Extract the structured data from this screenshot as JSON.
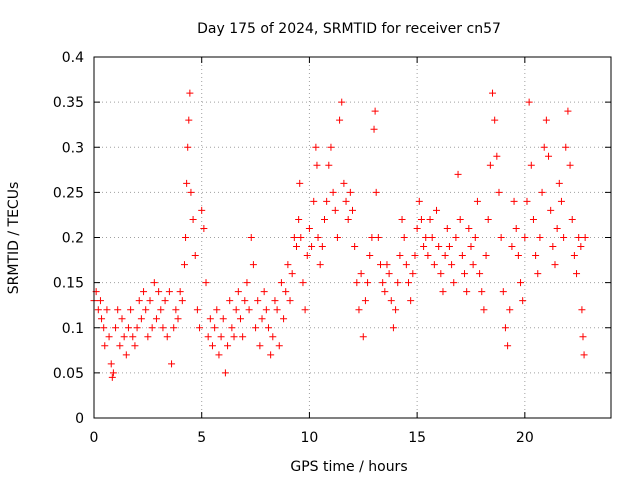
{
  "chart_data": {
    "type": "scatter",
    "title": "Day 175 of 2024, SRMTID for receiver cn57",
    "xlabel": "GPS time / hours",
    "ylabel": "SRMTID / TECUs",
    "xlim": [
      0,
      24
    ],
    "ylim": [
      0,
      0.4
    ],
    "xticks": [
      0,
      5,
      10,
      15,
      20
    ],
    "yticks": [
      0,
      0.05,
      0.1,
      0.15,
      0.2,
      0.25,
      0.3,
      0.35,
      0.4
    ],
    "xtick_labels": [
      "0",
      "5",
      "10",
      "15",
      "20"
    ],
    "ytick_labels": [
      "0",
      "0.05",
      "0.1",
      "0.15",
      "0.2",
      "0.25",
      "0.3",
      "0.35",
      "0.4"
    ],
    "marker": "+",
    "color": "#ff0000",
    "grid": true,
    "series": [
      {
        "name": "SRMTID",
        "points": [
          [
            0.0,
            0.13
          ],
          [
            0.1,
            0.14
          ],
          [
            0.2,
            0.12
          ],
          [
            0.3,
            0.13
          ],
          [
            0.35,
            0.11
          ],
          [
            0.45,
            0.1
          ],
          [
            0.5,
            0.08
          ],
          [
            0.6,
            0.12
          ],
          [
            0.7,
            0.09
          ],
          [
            0.8,
            0.06
          ],
          [
            0.85,
            0.045
          ],
          [
            0.9,
            0.05
          ],
          [
            1.0,
            0.1
          ],
          [
            1.1,
            0.12
          ],
          [
            1.2,
            0.08
          ],
          [
            1.3,
            0.11
          ],
          [
            1.4,
            0.09
          ],
          [
            1.5,
            0.07
          ],
          [
            1.6,
            0.1
          ],
          [
            1.7,
            0.12
          ],
          [
            1.8,
            0.09
          ],
          [
            1.9,
            0.08
          ],
          [
            2.0,
            0.1
          ],
          [
            2.1,
            0.13
          ],
          [
            2.2,
            0.11
          ],
          [
            2.3,
            0.14
          ],
          [
            2.4,
            0.12
          ],
          [
            2.5,
            0.09
          ],
          [
            2.6,
            0.13
          ],
          [
            2.7,
            0.1
          ],
          [
            2.8,
            0.15
          ],
          [
            2.9,
            0.11
          ],
          [
            3.0,
            0.14
          ],
          [
            3.1,
            0.12
          ],
          [
            3.2,
            0.1
          ],
          [
            3.3,
            0.13
          ],
          [
            3.4,
            0.09
          ],
          [
            3.5,
            0.14
          ],
          [
            3.6,
            0.06
          ],
          [
            3.7,
            0.1
          ],
          [
            3.8,
            0.12
          ],
          [
            3.9,
            0.11
          ],
          [
            4.0,
            0.14
          ],
          [
            4.1,
            0.13
          ],
          [
            4.2,
            0.17
          ],
          [
            4.25,
            0.2
          ],
          [
            4.3,
            0.26
          ],
          [
            4.35,
            0.3
          ],
          [
            4.4,
            0.33
          ],
          [
            4.45,
            0.36
          ],
          [
            4.5,
            0.25
          ],
          [
            4.6,
            0.22
          ],
          [
            4.7,
            0.18
          ],
          [
            4.8,
            0.12
          ],
          [
            4.9,
            0.1
          ],
          [
            5.0,
            0.23
          ],
          [
            5.1,
            0.21
          ],
          [
            5.2,
            0.15
          ],
          [
            5.3,
            0.09
          ],
          [
            5.4,
            0.11
          ],
          [
            5.5,
            0.08
          ],
          [
            5.6,
            0.1
          ],
          [
            5.7,
            0.12
          ],
          [
            5.8,
            0.07
          ],
          [
            5.9,
            0.09
          ],
          [
            6.0,
            0.11
          ],
          [
            6.1,
            0.05
          ],
          [
            6.2,
            0.08
          ],
          [
            6.3,
            0.13
          ],
          [
            6.4,
            0.1
          ],
          [
            6.5,
            0.09
          ],
          [
            6.6,
            0.12
          ],
          [
            6.7,
            0.14
          ],
          [
            6.8,
            0.11
          ],
          [
            6.9,
            0.09
          ],
          [
            7.0,
            0.13
          ],
          [
            7.1,
            0.15
          ],
          [
            7.2,
            0.12
          ],
          [
            7.3,
            0.2
          ],
          [
            7.4,
            0.17
          ],
          [
            7.5,
            0.1
          ],
          [
            7.6,
            0.13
          ],
          [
            7.7,
            0.08
          ],
          [
            7.8,
            0.11
          ],
          [
            7.9,
            0.14
          ],
          [
            8.0,
            0.12
          ],
          [
            8.1,
            0.1
          ],
          [
            8.2,
            0.07
          ],
          [
            8.3,
            0.09
          ],
          [
            8.4,
            0.13
          ],
          [
            8.5,
            0.12
          ],
          [
            8.6,
            0.08
          ],
          [
            8.7,
            0.15
          ],
          [
            8.8,
            0.11
          ],
          [
            8.9,
            0.14
          ],
          [
            9.0,
            0.17
          ],
          [
            9.1,
            0.13
          ],
          [
            9.2,
            0.16
          ],
          [
            9.3,
            0.2
          ],
          [
            9.4,
            0.19
          ],
          [
            9.5,
            0.22
          ],
          [
            9.55,
            0.26
          ],
          [
            9.6,
            0.2
          ],
          [
            9.7,
            0.15
          ],
          [
            9.8,
            0.12
          ],
          [
            9.9,
            0.18
          ],
          [
            10.0,
            0.21
          ],
          [
            10.1,
            0.19
          ],
          [
            10.2,
            0.24
          ],
          [
            10.3,
            0.3
          ],
          [
            10.35,
            0.28
          ],
          [
            10.4,
            0.2
          ],
          [
            10.5,
            0.17
          ],
          [
            10.6,
            0.19
          ],
          [
            10.7,
            0.22
          ],
          [
            10.8,
            0.24
          ],
          [
            10.9,
            0.28
          ],
          [
            11.0,
            0.3
          ],
          [
            11.1,
            0.25
          ],
          [
            11.2,
            0.23
          ],
          [
            11.3,
            0.2
          ],
          [
            11.4,
            0.33
          ],
          [
            11.5,
            0.35
          ],
          [
            11.6,
            0.26
          ],
          [
            11.7,
            0.24
          ],
          [
            11.8,
            0.22
          ],
          [
            11.9,
            0.25
          ],
          [
            12.0,
            0.23
          ],
          [
            12.1,
            0.19
          ],
          [
            12.2,
            0.15
          ],
          [
            12.3,
            0.12
          ],
          [
            12.4,
            0.16
          ],
          [
            12.5,
            0.09
          ],
          [
            12.6,
            0.13
          ],
          [
            12.7,
            0.15
          ],
          [
            12.8,
            0.18
          ],
          [
            12.9,
            0.2
          ],
          [
            13.0,
            0.32
          ],
          [
            13.05,
            0.34
          ],
          [
            13.1,
            0.25
          ],
          [
            13.2,
            0.2
          ],
          [
            13.3,
            0.17
          ],
          [
            13.4,
            0.15
          ],
          [
            13.5,
            0.14
          ],
          [
            13.6,
            0.17
          ],
          [
            13.7,
            0.16
          ],
          [
            13.8,
            0.13
          ],
          [
            13.9,
            0.1
          ],
          [
            14.0,
            0.12
          ],
          [
            14.1,
            0.15
          ],
          [
            14.2,
            0.18
          ],
          [
            14.3,
            0.22
          ],
          [
            14.4,
            0.2
          ],
          [
            14.5,
            0.17
          ],
          [
            14.6,
            0.15
          ],
          [
            14.7,
            0.13
          ],
          [
            14.8,
            0.16
          ],
          [
            14.9,
            0.18
          ],
          [
            15.0,
            0.21
          ],
          [
            15.1,
            0.24
          ],
          [
            15.2,
            0.22
          ],
          [
            15.3,
            0.19
          ],
          [
            15.4,
            0.2
          ],
          [
            15.5,
            0.18
          ],
          [
            15.6,
            0.22
          ],
          [
            15.7,
            0.2
          ],
          [
            15.8,
            0.17
          ],
          [
            15.9,
            0.23
          ],
          [
            16.0,
            0.19
          ],
          [
            16.1,
            0.16
          ],
          [
            16.2,
            0.14
          ],
          [
            16.3,
            0.18
          ],
          [
            16.4,
            0.21
          ],
          [
            16.5,
            0.19
          ],
          [
            16.6,
            0.17
          ],
          [
            16.7,
            0.15
          ],
          [
            16.8,
            0.2
          ],
          [
            16.9,
            0.27
          ],
          [
            17.0,
            0.22
          ],
          [
            17.1,
            0.18
          ],
          [
            17.2,
            0.16
          ],
          [
            17.3,
            0.14
          ],
          [
            17.4,
            0.21
          ],
          [
            17.5,
            0.19
          ],
          [
            17.6,
            0.17
          ],
          [
            17.7,
            0.2
          ],
          [
            17.8,
            0.24
          ],
          [
            17.9,
            0.16
          ],
          [
            18.0,
            0.14
          ],
          [
            18.1,
            0.12
          ],
          [
            18.2,
            0.18
          ],
          [
            18.3,
            0.22
          ],
          [
            18.4,
            0.28
          ],
          [
            18.5,
            0.36
          ],
          [
            18.6,
            0.33
          ],
          [
            18.7,
            0.29
          ],
          [
            18.8,
            0.25
          ],
          [
            18.9,
            0.2
          ],
          [
            19.0,
            0.14
          ],
          [
            19.1,
            0.1
          ],
          [
            19.2,
            0.08
          ],
          [
            19.3,
            0.12
          ],
          [
            19.4,
            0.19
          ],
          [
            19.5,
            0.24
          ],
          [
            19.6,
            0.21
          ],
          [
            19.7,
            0.18
          ],
          [
            19.8,
            0.15
          ],
          [
            19.9,
            0.13
          ],
          [
            20.0,
            0.2
          ],
          [
            20.1,
            0.24
          ],
          [
            20.2,
            0.35
          ],
          [
            20.3,
            0.28
          ],
          [
            20.4,
            0.22
          ],
          [
            20.5,
            0.18
          ],
          [
            20.6,
            0.16
          ],
          [
            20.7,
            0.2
          ],
          [
            20.8,
            0.25
          ],
          [
            20.9,
            0.3
          ],
          [
            21.0,
            0.33
          ],
          [
            21.1,
            0.29
          ],
          [
            21.2,
            0.23
          ],
          [
            21.3,
            0.19
          ],
          [
            21.4,
            0.17
          ],
          [
            21.5,
            0.21
          ],
          [
            21.6,
            0.26
          ],
          [
            21.7,
            0.24
          ],
          [
            21.8,
            0.2
          ],
          [
            21.9,
            0.3
          ],
          [
            22.0,
            0.34
          ],
          [
            22.1,
            0.28
          ],
          [
            22.2,
            0.22
          ],
          [
            22.3,
            0.18
          ],
          [
            22.4,
            0.16
          ],
          [
            22.5,
            0.2
          ],
          [
            22.6,
            0.19
          ],
          [
            22.65,
            0.12
          ],
          [
            22.7,
            0.09
          ],
          [
            22.75,
            0.07
          ],
          [
            22.8,
            0.2
          ]
        ]
      }
    ]
  }
}
